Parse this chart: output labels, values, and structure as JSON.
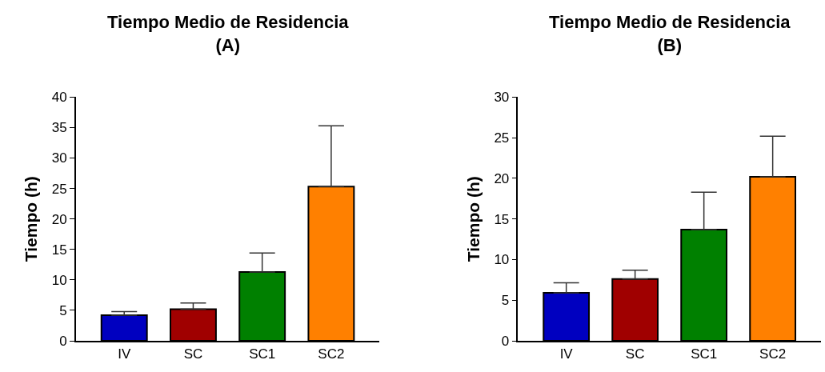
{
  "chart_data": [
    {
      "type": "bar",
      "title": "Tiempo Medio de Residencia\n(A)",
      "ylabel": "Tiempo (h)",
      "categories": [
        "IV",
        "SC",
        "SC1",
        "SC2"
      ],
      "values": [
        4.2,
        5.2,
        11.3,
        25.3
      ],
      "errors": [
        [
          4.2,
          4.8
        ],
        [
          5.2,
          6.2
        ],
        [
          11.3,
          14.4
        ],
        [
          25.3,
          35.3
        ]
      ],
      "colors": [
        "#0000c0",
        "#a00000",
        "#008000",
        "#ff8000"
      ],
      "ylim": [
        0,
        40
      ],
      "yticks": [
        0,
        5,
        10,
        15,
        20,
        25,
        30,
        35,
        40
      ]
    },
    {
      "type": "bar",
      "title": "Tiempo Medio de Residencia\n(B)",
      "ylabel": "Tiempo (h)",
      "categories": [
        "IV",
        "SC",
        "SC1",
        "SC2"
      ],
      "values": [
        5.9,
        7.6,
        13.7,
        20.2
      ],
      "errors": [
        [
          5.9,
          7.15
        ],
        [
          7.6,
          8.7
        ],
        [
          13.7,
          18.3
        ],
        [
          20.2,
          25.2
        ]
      ],
      "colors": [
        "#0000c0",
        "#a00000",
        "#008000",
        "#ff8000"
      ],
      "ylim": [
        0,
        30
      ],
      "yticks": [
        0,
        5,
        10,
        15,
        20,
        25,
        30
      ]
    }
  ]
}
